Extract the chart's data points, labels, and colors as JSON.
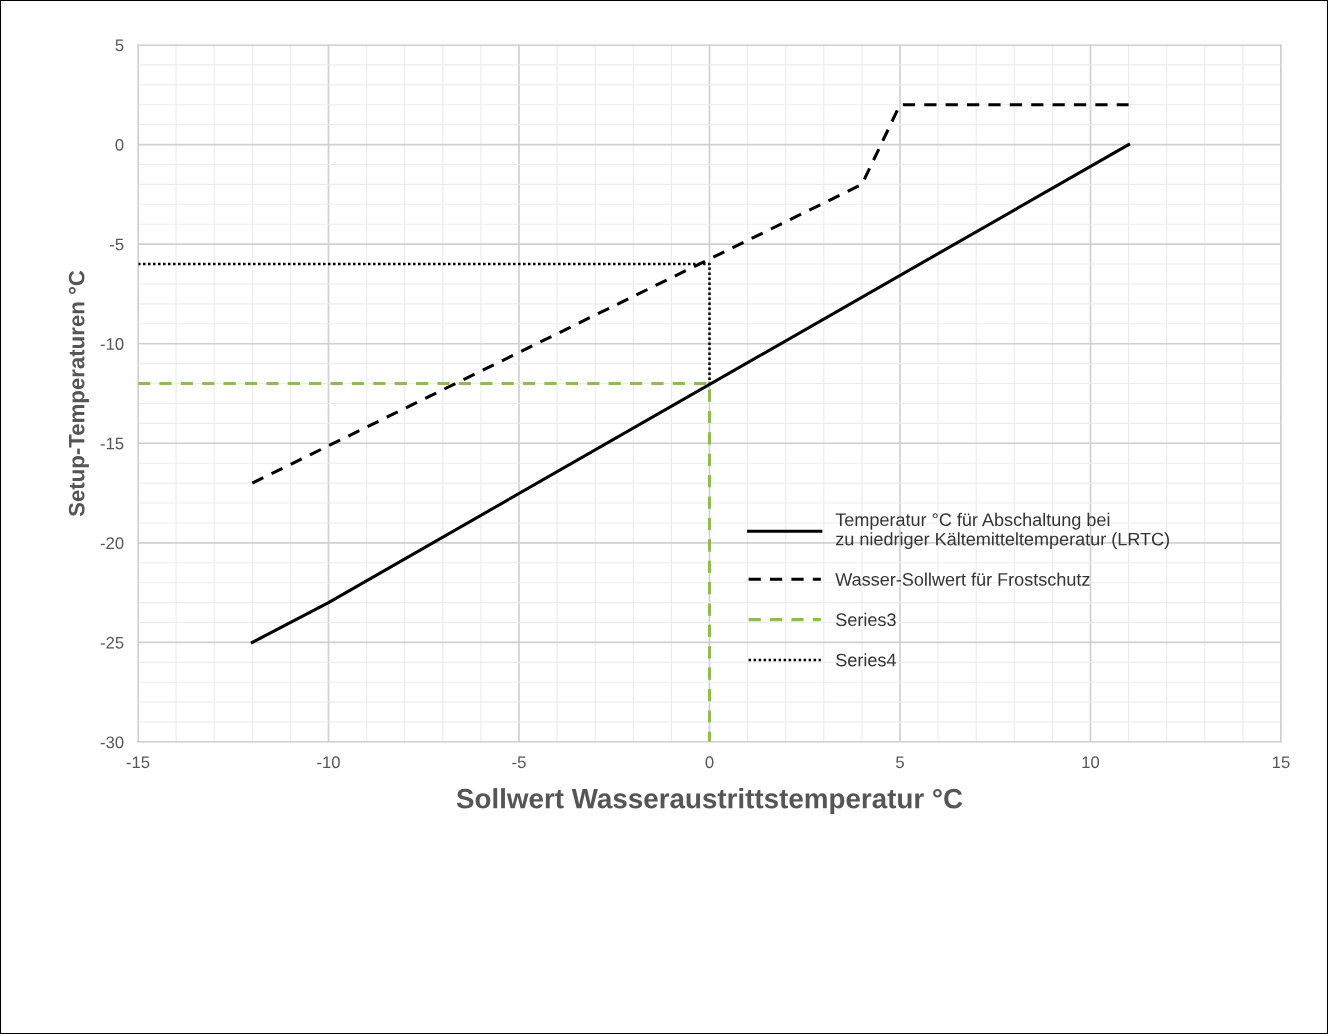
{
  "chart_data": {
    "type": "line",
    "xlabel": "Sollwert Wasseraustrittstemperatur °C",
    "ylabel": "Setup-Temperaturen °C",
    "xlim": [
      -15,
      15
    ],
    "xticks": [
      -15,
      -10,
      -5,
      0,
      5,
      10,
      15
    ],
    "ylim": [
      -30,
      5
    ],
    "yticks": [
      -30,
      -25,
      -20,
      -15,
      -10,
      -5,
      0,
      5
    ],
    "grid": true,
    "legend": "bottom right",
    "marker": "none",
    "series": [
      {
        "name": "Temperatur °C für Abschaltung bei\nzu niedriger Kältemitteltemperatur (LRTC)",
        "color": "#000000",
        "line_style": "solid",
        "x": [
          -12,
          -10,
          11
        ],
        "values": [
          -25,
          -23,
          0
        ]
      },
      {
        "name": "Wasser-Sollwert für Frostschutz",
        "color": "#000000",
        "line_style": "dashed",
        "x": [
          -12,
          4,
          5,
          11
        ],
        "values": [
          -17,
          -2,
          2,
          2
        ]
      },
      {
        "name": "Series3",
        "color": "#8fbc4f",
        "line_style": "dashed",
        "x": [
          -15,
          0,
          0
        ],
        "values": [
          -12,
          -12,
          -30
        ]
      },
      {
        "name": "Series4",
        "color": "#000000",
        "line_style": "dotted",
        "x": [
          -15,
          0,
          0
        ],
        "values": [
          -6,
          -6,
          -12
        ]
      }
    ]
  }
}
